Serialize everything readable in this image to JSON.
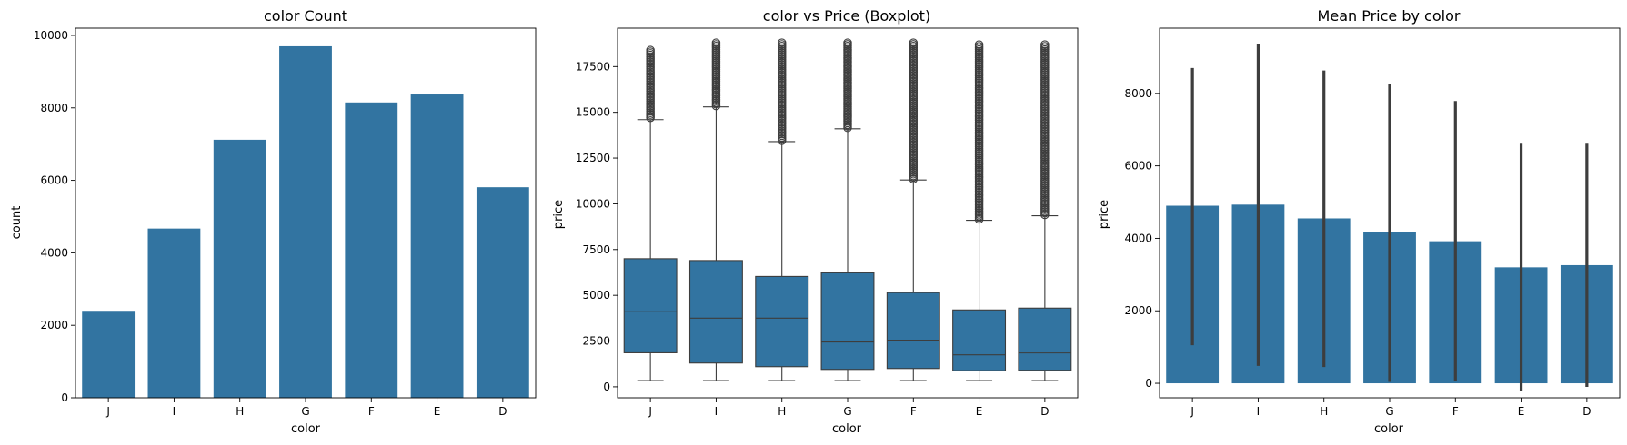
{
  "chart_data": [
    {
      "type": "bar",
      "title": "color Count",
      "xlabel": "color",
      "ylabel": "count",
      "categories": [
        "J",
        "I",
        "H",
        "G",
        "F",
        "E",
        "D"
      ],
      "values": [
        2400,
        4670,
        7120,
        9700,
        8150,
        8370,
        5810
      ],
      "ylim": [
        0,
        10200
      ],
      "yticks": [
        0,
        2000,
        4000,
        6000,
        8000,
        10000
      ],
      "color": "#3274a1",
      "grid": false
    },
    {
      "type": "boxplot",
      "title": "color vs Price (Boxplot)",
      "xlabel": "color",
      "ylabel": "price",
      "categories": [
        "J",
        "I",
        "H",
        "G",
        "F",
        "E",
        "D"
      ],
      "boxes": [
        {
          "whisker_low": 340,
          "q1": 1860,
          "median": 4100,
          "q3": 7000,
          "whisker_high": 14600,
          "outliers_from": 14700,
          "outliers_to": 18400
        },
        {
          "whisker_low": 340,
          "q1": 1300,
          "median": 3750,
          "q3": 6900,
          "whisker_high": 15300,
          "outliers_from": 15350,
          "outliers_to": 18800
        },
        {
          "whisker_low": 340,
          "q1": 1100,
          "median": 3750,
          "q3": 6030,
          "whisker_high": 13400,
          "outliers_from": 13450,
          "outliers_to": 18800
        },
        {
          "whisker_low": 340,
          "q1": 950,
          "median": 2450,
          "q3": 6230,
          "whisker_high": 14100,
          "outliers_from": 14150,
          "outliers_to": 18800
        },
        {
          "whisker_low": 340,
          "q1": 1000,
          "median": 2550,
          "q3": 5150,
          "whisker_high": 11300,
          "outliers_from": 11350,
          "outliers_to": 18800
        },
        {
          "whisker_low": 340,
          "q1": 880,
          "median": 1750,
          "q3": 4200,
          "whisker_high": 9100,
          "outliers_from": 9150,
          "outliers_to": 18700
        },
        {
          "whisker_low": 340,
          "q1": 900,
          "median": 1850,
          "q3": 4300,
          "whisker_high": 9350,
          "outliers_from": 9400,
          "outliers_to": 18700
        }
      ],
      "ylim": [
        -600,
        19600
      ],
      "yticks": [
        0,
        2500,
        5000,
        7500,
        10000,
        12500,
        15000,
        17500
      ],
      "color": "#3274a1",
      "grid": false
    },
    {
      "type": "bar",
      "title": "Mean Price by color",
      "xlabel": "color",
      "ylabel": "price",
      "categories": [
        "J",
        "I",
        "H",
        "G",
        "F",
        "E",
        "D"
      ],
      "values": [
        4900,
        4930,
        4550,
        4170,
        3920,
        3200,
        3260
      ],
      "error_low": [
        1050,
        480,
        450,
        40,
        50,
        -200,
        -100
      ],
      "error_high": [
        8700,
        9350,
        8630,
        8250,
        7790,
        6610,
        6610
      ],
      "ylim": [
        -400,
        9800
      ],
      "yticks": [
        0,
        2000,
        4000,
        6000,
        8000
      ],
      "color": "#3274a1",
      "grid": false
    }
  ]
}
